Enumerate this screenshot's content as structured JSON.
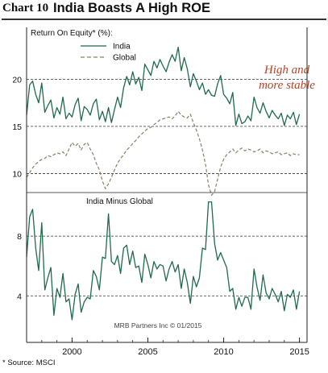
{
  "header": {
    "chart_number": "Chart 10",
    "title": "India Boasts A High ROE"
  },
  "source": "* Source: MSCI",
  "chart_data": [
    {
      "type": "line",
      "title": "Return On Equity* (%):",
      "ylim": [
        8.5,
        25.5
      ],
      "yticks": [
        10,
        15,
        20
      ],
      "xlim": [
        1997.0,
        2015.5
      ],
      "grid": "dashed horizontal",
      "legend": "top-left",
      "annotation": "High and\nmore stable",
      "annotation_color": "#b5442a",
      "series": [
        {
          "name": "India",
          "color": "#1f6b4c",
          "style": "solid",
          "x": [
            1997.0,
            1997.2,
            1997.4,
            1997.6,
            1997.8,
            1998.0,
            1998.2,
            1998.4,
            1998.6,
            1998.8,
            1999.0,
            1999.2,
            1999.4,
            1999.6,
            1999.8,
            2000.0,
            2000.2,
            2000.4,
            2000.6,
            2000.8,
            2001.0,
            2001.2,
            2001.4,
            2001.6,
            2001.8,
            2002.0,
            2002.2,
            2002.4,
            2002.6,
            2002.8,
            2003.0,
            2003.2,
            2003.4,
            2003.6,
            2003.8,
            2004.0,
            2004.2,
            2004.4,
            2004.6,
            2004.8,
            2005.0,
            2005.2,
            2005.4,
            2005.6,
            2005.8,
            2006.0,
            2006.2,
            2006.4,
            2006.6,
            2006.8,
            2007.0,
            2007.2,
            2007.4,
            2007.6,
            2007.8,
            2008.0,
            2008.2,
            2008.4,
            2008.6,
            2008.8,
            2009.0,
            2009.2,
            2009.4,
            2009.6,
            2009.8,
            2010.0,
            2010.2,
            2010.4,
            2010.6,
            2010.8,
            2011.0,
            2011.2,
            2011.4,
            2011.6,
            2011.8,
            2012.0,
            2012.2,
            2012.4,
            2012.6,
            2012.8,
            2013.0,
            2013.2,
            2013.4,
            2013.6,
            2013.8,
            2014.0,
            2014.2,
            2014.4,
            2014.6,
            2014.8,
            2015.0
          ],
          "y": [
            16.2,
            19.4,
            19.8,
            18.4,
            17.5,
            19.6,
            16.5,
            17.2,
            17.8,
            15.9,
            17.0,
            16.3,
            18.1,
            15.8,
            16.4,
            16.0,
            17.3,
            18.0,
            15.6,
            17.1,
            16.8,
            16.2,
            17.4,
            17.9,
            15.7,
            16.6,
            15.5,
            17.0,
            15.4,
            16.8,
            18.1,
            17.0,
            19.1,
            20.3,
            19.4,
            20.8,
            19.5,
            20.2,
            18.8,
            21.6,
            21.0,
            20.4,
            21.9,
            21.2,
            22.1,
            21.4,
            20.8,
            21.8,
            22.6,
            21.9,
            23.4,
            20.9,
            22.3,
            21.1,
            19.2,
            20.6,
            19.8,
            18.9,
            19.6,
            18.4,
            18.9,
            18.3,
            18.2,
            19.5,
            20.4,
            18.4,
            18.0,
            17.4,
            18.6,
            15.1,
            16.3,
            15.3,
            15.5,
            16.1,
            15.6,
            18.1,
            17.0,
            16.4,
            17.5,
            16.6,
            15.9,
            16.7,
            16.2,
            15.8,
            16.4,
            15.1,
            16.2,
            15.8,
            16.5,
            15.2,
            16.3
          ]
        },
        {
          "name": "Global",
          "color": "#8b7e66",
          "style": "dashed",
          "x": [
            1997.0,
            1997.2,
            1997.4,
            1997.6,
            1997.8,
            1998.0,
            1998.2,
            1998.4,
            1998.6,
            1998.8,
            1999.0,
            1999.2,
            1999.4,
            1999.6,
            1999.8,
            2000.0,
            2000.2,
            2000.4,
            2000.6,
            2000.8,
            2001.0,
            2001.2,
            2001.4,
            2001.6,
            2001.8,
            2002.0,
            2002.2,
            2002.4,
            2002.6,
            2002.8,
            2003.0,
            2003.2,
            2003.4,
            2003.6,
            2003.8,
            2004.0,
            2004.2,
            2004.4,
            2004.6,
            2004.8,
            2005.0,
            2005.2,
            2005.4,
            2005.6,
            2005.8,
            2006.0,
            2006.2,
            2006.4,
            2006.6,
            2006.8,
            2007.0,
            2007.2,
            2007.4,
            2007.6,
            2007.8,
            2008.0,
            2008.2,
            2008.4,
            2008.6,
            2008.8,
            2009.0,
            2009.2,
            2009.4,
            2009.6,
            2009.8,
            2010.0,
            2010.2,
            2010.4,
            2010.6,
            2010.8,
            2011.0,
            2011.2,
            2011.4,
            2011.6,
            2011.8,
            2012.0,
            2012.2,
            2012.4,
            2012.6,
            2012.8,
            2013.0,
            2013.2,
            2013.4,
            2013.6,
            2013.8,
            2014.0,
            2014.2,
            2014.4,
            2014.6,
            2014.8,
            2015.0
          ],
          "y": [
            9.6,
            10.1,
            10.6,
            11.0,
            11.3,
            11.5,
            11.6,
            11.9,
            11.8,
            12.0,
            12.2,
            12.1,
            12.3,
            11.9,
            12.6,
            13.3,
            12.9,
            13.2,
            12.5,
            13.1,
            13.3,
            12.6,
            12.0,
            11.1,
            10.4,
            9.2,
            8.4,
            8.9,
            9.6,
            10.4,
            11.1,
            11.6,
            12.0,
            12.5,
            12.8,
            13.2,
            13.5,
            13.9,
            14.2,
            14.5,
            14.8,
            14.9,
            15.2,
            15.4,
            15.7,
            15.8,
            15.9,
            16.0,
            15.8,
            16.1,
            16.6,
            16.2,
            16.0,
            15.9,
            16.3,
            15.4,
            14.6,
            13.7,
            12.5,
            11.0,
            8.8,
            7.7,
            8.1,
            9.4,
            10.7,
            11.5,
            12.0,
            12.3,
            12.6,
            12.2,
            12.5,
            12.7,
            12.4,
            12.6,
            12.5,
            12.3,
            12.4,
            12.6,
            12.2,
            12.4,
            12.3,
            12.1,
            12.2,
            12.3,
            12.0,
            12.1,
            12.2,
            11.9,
            12.1,
            12.0,
            12.0
          ]
        }
      ]
    },
    {
      "type": "line",
      "title": "India Minus Global",
      "ylim": [
        1.8,
        10.6
      ],
      "yticks": [
        4,
        8
      ],
      "xlim": [
        1997.0,
        2015.5
      ],
      "xticks": [
        2000,
        2005,
        2010,
        2015
      ],
      "grid": "dashed horizontal",
      "watermark": "MRB Partners Inc © 01/2015",
      "series": [
        {
          "color": "#1f6b4c",
          "x": [
            1997.0,
            1997.2,
            1997.4,
            1997.6,
            1997.8,
            1998.0,
            1998.2,
            1998.4,
            1998.6,
            1998.8,
            1999.0,
            1999.2,
            1999.4,
            1999.6,
            1999.8,
            2000.0,
            2000.2,
            2000.4,
            2000.6,
            2000.8,
            2001.0,
            2001.2,
            2001.4,
            2001.6,
            2001.8,
            2002.0,
            2002.2,
            2002.4,
            2002.6,
            2002.8,
            2003.0,
            2003.2,
            2003.4,
            2003.6,
            2003.8,
            2004.0,
            2004.2,
            2004.4,
            2004.6,
            2004.8,
            2005.0,
            2005.2,
            2005.4,
            2005.6,
            2005.8,
            2006.0,
            2006.2,
            2006.4,
            2006.6,
            2006.8,
            2007.0,
            2007.2,
            2007.4,
            2007.6,
            2007.8,
            2008.0,
            2008.2,
            2008.4,
            2008.6,
            2008.8,
            2009.0,
            2009.2,
            2009.4,
            2009.6,
            2009.8,
            2010.0,
            2010.2,
            2010.4,
            2010.6,
            2010.8,
            2011.0,
            2011.2,
            2011.4,
            2011.6,
            2011.8,
            2012.0,
            2012.2,
            2012.4,
            2012.6,
            2012.8,
            2013.0,
            2013.2,
            2013.4,
            2013.6,
            2013.8,
            2014.0,
            2014.2,
            2014.4,
            2014.6,
            2014.8,
            2015.0
          ],
          "y": [
            6.6,
            9.3,
            9.8,
            7.2,
            5.7,
            8.9,
            4.4,
            5.2,
            5.9,
            2.7,
            4.5,
            3.9,
            5.5,
            3.6,
            3.8,
            2.4,
            4.1,
            4.8,
            2.9,
            3.6,
            3.9,
            3.8,
            5.7,
            5.3,
            4.4,
            6.6,
            6.5,
            9.5,
            6.3,
            6.1,
            6.7,
            5.5,
            7.2,
            7.4,
            6.1,
            7.0,
            5.9,
            6.0,
            4.9,
            6.8,
            6.1,
            5.2,
            6.3,
            5.8,
            6.1,
            6.0,
            5.0,
            5.8,
            6.3,
            5.6,
            6.1,
            4.5,
            5.8,
            4.9,
            3.5,
            5.3,
            4.6,
            5.2,
            7.2,
            7.1,
            10.3,
            10.3,
            7.5,
            6.4,
            6.9,
            6.4,
            5.9,
            4.3,
            4.5,
            3.1,
            3.9,
            3.3,
            3.9,
            3.9,
            3.1,
            5.8,
            4.6,
            3.7,
            5.4,
            4.2,
            3.8,
            4.5,
            4.1,
            3.6,
            4.3,
            3.0,
            4.1,
            3.9,
            4.4,
            3.1,
            4.3
          ]
        }
      ]
    }
  ]
}
